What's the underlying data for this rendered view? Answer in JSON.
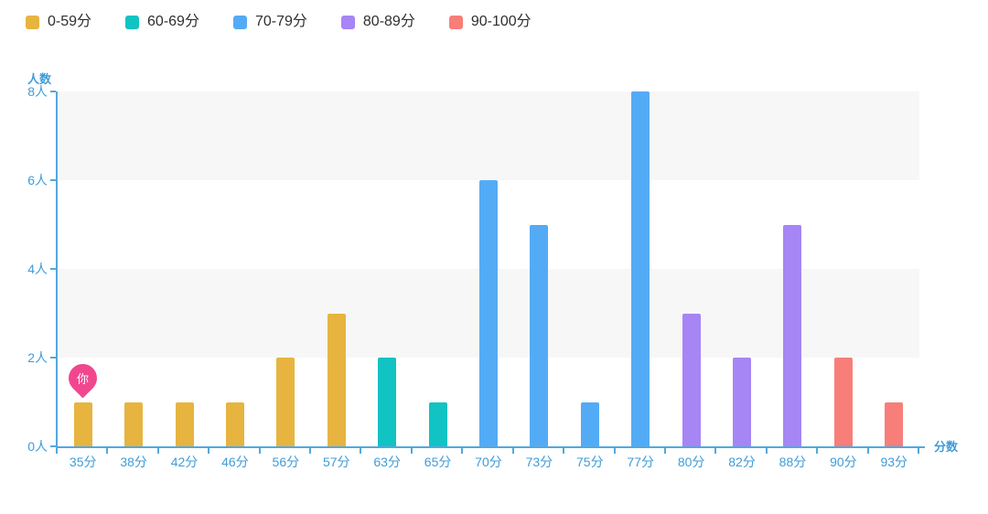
{
  "legend": {
    "items": [
      {
        "label": "0-59分",
        "color": "#E7B440"
      },
      {
        "label": "60-69分",
        "color": "#11C3C3"
      },
      {
        "label": "70-79分",
        "color": "#54ABF5"
      },
      {
        "label": "80-89分",
        "color": "#A685F5"
      },
      {
        "label": "90-100分",
        "color": "#F87E79"
      }
    ]
  },
  "axes": {
    "y_title": "人数",
    "x_title": "分数",
    "y_tick_labels": [
      "8人",
      "6人",
      "4人",
      "2人",
      "0人"
    ],
    "axis_line_color": "#55A7DE",
    "tick_label_color": "#3F9CD9",
    "band_color": "#f7f7f8"
  },
  "marker": {
    "label": "你",
    "color": "#F0478F",
    "category": "35分"
  },
  "chart_data": {
    "type": "bar",
    "title": "",
    "xlabel": "分数",
    "ylabel": "人数",
    "categories": [
      "35分",
      "38分",
      "42分",
      "46分",
      "56分",
      "57分",
      "63分",
      "65分",
      "70分",
      "73分",
      "75分",
      "77分",
      "80分",
      "82分",
      "88分",
      "90分",
      "93分"
    ],
    "values": [
      1,
      1,
      1,
      1,
      2,
      3,
      2,
      1,
      6,
      5,
      1,
      8,
      3,
      2,
      5,
      2,
      1
    ],
    "group_index": [
      0,
      0,
      0,
      0,
      0,
      0,
      1,
      1,
      2,
      2,
      2,
      2,
      3,
      3,
      3,
      4,
      4
    ],
    "group_names": [
      "0-59分",
      "60-69分",
      "70-79分",
      "80-89分",
      "90-100分"
    ],
    "ylim": [
      0,
      8
    ],
    "y_ticks": [
      0,
      2,
      4,
      6,
      8
    ],
    "grid": "alternating-horizontal-bands",
    "legend_position": "top-left",
    "annotation": {
      "text": "你",
      "at_category": "35分"
    }
  }
}
